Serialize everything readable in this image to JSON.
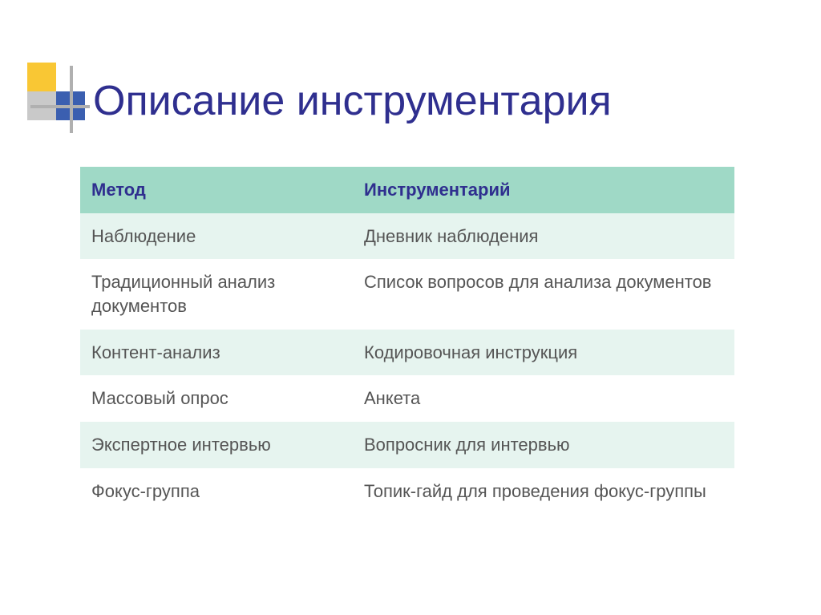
{
  "title": "Описание инструментария",
  "logo": {
    "colors": {
      "yellow": "#f9c734",
      "gray": "#c9c9c9",
      "blue": "#3b5fb0",
      "line": "#b0b0b0"
    }
  },
  "table": {
    "header_bg": "#9fd9c6",
    "header_color": "#2f2f8f",
    "row_even_bg": "#e6f4ef",
    "row_odd_bg": "#ffffff",
    "text_color": "#555555",
    "columns": [
      "Метод",
      "Инструментарий"
    ],
    "rows": [
      [
        "Наблюдение",
        "Дневник наблюдения"
      ],
      [
        "Традиционный анализ документов",
        "Список вопросов для анализа документов"
      ],
      [
        "Контент-анализ",
        "Кодировочная инструкция"
      ],
      [
        "Массовый опрос",
        "Анкета"
      ],
      [
        "Экспертное интервью",
        "Вопросник для интервью"
      ],
      [
        "Фокус-группа",
        "Топик-гайд для проведения фокус-группы"
      ]
    ]
  }
}
